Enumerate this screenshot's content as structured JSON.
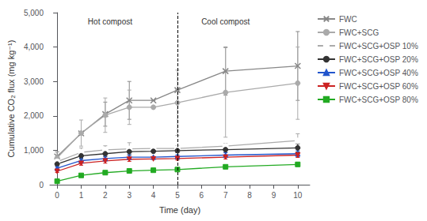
{
  "chart_data": {
    "type": "line",
    "xlabel": "Time (day)",
    "ylabel": "Cumulative CO₂ flux (mg kg⁻¹)",
    "xlim": [
      -0.3,
      10.5
    ],
    "xticks": [
      0,
      1,
      2,
      3,
      4,
      5,
      6,
      7,
      8,
      9,
      10
    ],
    "ylim": [
      0,
      5000
    ],
    "yticks": [
      0,
      1000,
      2000,
      3000,
      4000,
      5000
    ],
    "grid": false,
    "legend": "right",
    "annotations": [
      {
        "text": "Hot compost",
        "x": 2.2,
        "y": 4850
      },
      {
        "text": "Cool compost",
        "x": 7.0,
        "y": 4850
      }
    ],
    "vlines": [
      {
        "x": 5,
        "color": "#000000",
        "line_style": "dashed"
      }
    ],
    "series": [
      {
        "name": "FWC",
        "color": "#888888",
        "marker": "x",
        "line_style": "solid",
        "x": [
          0,
          1,
          2,
          3,
          4,
          5,
          7,
          10
        ],
        "values": [
          820,
          1490,
          2050,
          2450,
          2450,
          2750,
          3300,
          3450
        ],
        "errors": [
          130,
          0,
          350,
          550,
          0,
          0,
          700,
          1000
        ]
      },
      {
        "name": "FWC+SCG",
        "color": "#aaaaaa",
        "marker": "circle",
        "line_style": "solid",
        "x": [
          0,
          1,
          2,
          3,
          4,
          5,
          7,
          10
        ],
        "values": [
          780,
          1500,
          2020,
          2250,
          2250,
          2380,
          2680,
          2950
        ],
        "errors": [
          180,
          380,
          500,
          500,
          0,
          950,
          1300,
          1050
        ]
      },
      {
        "name": "FWC+SCG+OSP 10%",
        "color": "#aaaaaa",
        "marker": "hollow_circle",
        "line_style": "solid",
        "x": [
          0,
          1,
          2,
          3,
          4,
          5,
          7,
          10
        ],
        "values": [
          670,
          940,
          1010,
          1040,
          1050,
          1050,
          1120,
          1280
        ],
        "errors": [
          70,
          130,
          120,
          180,
          0,
          80,
          80,
          200
        ]
      },
      {
        "name": "FWC+SCG+OSP 20%",
        "color": "#333333",
        "marker": "circle",
        "line_style": "solid",
        "x": [
          0,
          1,
          2,
          3,
          4,
          5,
          7,
          10
        ],
        "values": [
          600,
          840,
          900,
          960,
          970,
          990,
          1020,
          1070
        ],
        "errors": [
          50,
          90,
          90,
          100,
          0,
          60,
          80,
          120
        ]
      },
      {
        "name": "FWC+SCG+OSP 40%",
        "color": "#2255cc",
        "marker": "triangle",
        "line_style": "solid",
        "x": [
          0,
          1,
          2,
          3,
          4,
          5,
          7,
          10
        ],
        "values": [
          480,
          700,
          760,
          800,
          800,
          820,
          860,
          900
        ],
        "errors": [
          40,
          70,
          70,
          70,
          0,
          50,
          70,
          90
        ]
      },
      {
        "name": "FWC+SCG+OSP 60%",
        "color": "#cc2222",
        "marker": "triangle_down",
        "line_style": "solid",
        "x": [
          0,
          1,
          2,
          3,
          4,
          5,
          7,
          10
        ],
        "values": [
          390,
          620,
          690,
          740,
          750,
          760,
          800,
          860
        ],
        "errors": [
          35,
          55,
          65,
          65,
          0,
          45,
          55,
          70
        ]
      },
      {
        "name": "FWC+SCG+OSP 80%",
        "color": "#22aa22",
        "marker": "square",
        "line_style": "solid",
        "x": [
          0,
          1,
          2,
          3,
          4,
          5,
          7,
          10
        ],
        "values": [
          100,
          270,
          350,
          400,
          420,
          440,
          520,
          590
        ],
        "errors": [
          15,
          35,
          45,
          45,
          0,
          35,
          45,
          55
        ]
      }
    ]
  }
}
